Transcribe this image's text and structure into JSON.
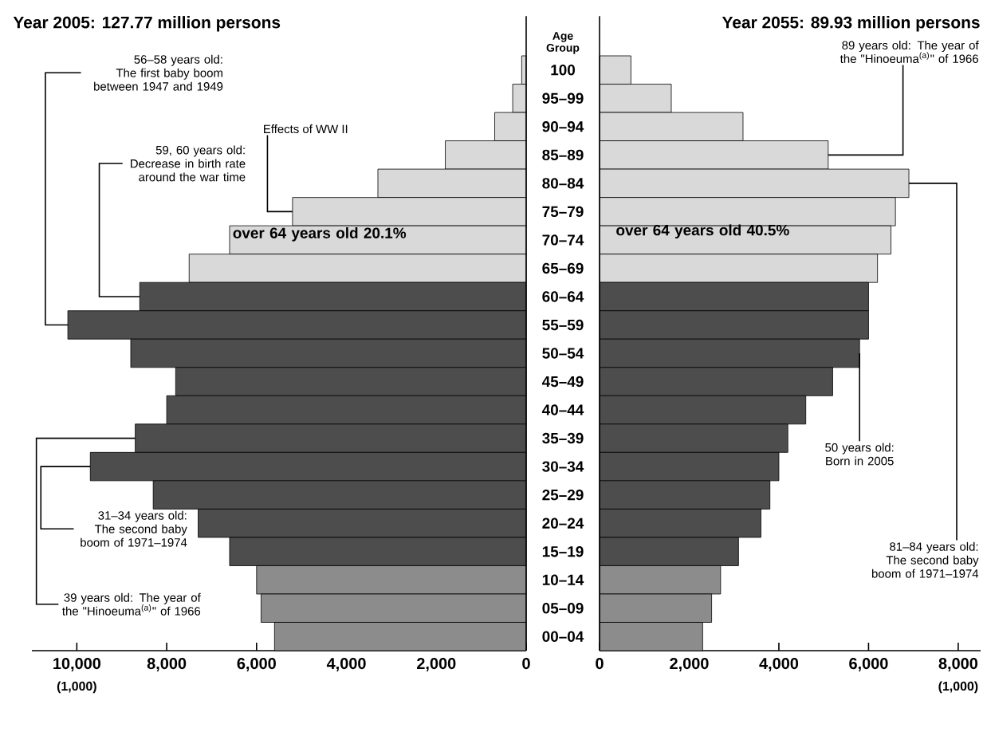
{
  "chart_data": [
    {
      "type": "bar",
      "orientation": "horizontal",
      "title": "Year 2005: 127.77 million persons",
      "xlabel": "(1,000)",
      "ylabel": "Age Group",
      "categories": [
        "100",
        "95–99",
        "90–94",
        "85–89",
        "80–84",
        "75–79",
        "70–74",
        "65–69",
        "60–64",
        "55–59",
        "50–54",
        "45–49",
        "40–44",
        "35–39",
        "30–34",
        "25–29",
        "20–24",
        "15–19",
        "10–14",
        "05–09",
        "00–04"
      ],
      "values": [
        100,
        300,
        700,
        1800,
        3300,
        5200,
        6600,
        7500,
        8600,
        10200,
        8800,
        7800,
        8000,
        8700,
        9700,
        8300,
        7300,
        6600,
        6000,
        5900,
        5600
      ],
      "colors": [
        "#d9d9d9",
        "#d9d9d9",
        "#d9d9d9",
        "#d9d9d9",
        "#d9d9d9",
        "#d9d9d9",
        "#d9d9d9",
        "#d9d9d9",
        "#4d4d4d",
        "#4d4d4d",
        "#4d4d4d",
        "#4d4d4d",
        "#4d4d4d",
        "#4d4d4d",
        "#4d4d4d",
        "#4d4d4d",
        "#4d4d4d",
        "#4d4d4d",
        "#8c8c8c",
        "#8c8c8c",
        "#8c8c8c"
      ],
      "xlim": [
        11000,
        0
      ],
      "xticks": [
        0,
        {
          "value": 2000,
          "label": "2,000"
        },
        {
          "value": 4000,
          "label": "4,000"
        },
        {
          "value": 6000,
          "label": "6,000"
        },
        {
          "value": 8000,
          "label": "8,000"
        },
        {
          "value": 10000,
          "label": "10,000"
        }
      ],
      "annotations": [
        {
          "text": "56–58 years old: The first baby boom between 1947 and 1949",
          "x": 10200,
          "y": "55–59"
        },
        {
          "text": "59, 60 years old: Decrease in birth rate around the war time",
          "x": 8600,
          "y": "60–64"
        },
        {
          "text": "Effects of WW II",
          "x": 5200,
          "y": "75–79"
        },
        {
          "text": "31–34 years old: The second baby boom of 1971–1974",
          "x": 9700,
          "y": "30–34"
        },
        {
          "text": "39 years old: The year of the \"Hinoeuma$^{(a)}$\" of 1966",
          "x": 8700,
          "y": "35–39"
        },
        "over 64 years old 20.1%"
      ]
    },
    {
      "type": "bar",
      "orientation": "horizontal",
      "title": "Year 2055: 89.93 million persons",
      "xlabel": "(1,000)",
      "tick_labels": "x",
      "categories": [
        "100",
        "95–99",
        "90–94",
        "85–89",
        "80–84",
        "75–79",
        "70–74",
        "65–69",
        "60–64",
        "55–59",
        "50–54",
        "45–49",
        "40–44",
        "35–39",
        "30–34",
        "25–29",
        "20–24",
        "15–19",
        "10–14",
        "05–09",
        "00–04"
      ],
      "values": [
        700,
        1600,
        3200,
        5100,
        6900,
        6600,
        6500,
        6200,
        6000,
        6000,
        5800,
        5200,
        4600,
        4200,
        4000,
        3800,
        3600,
        3100,
        2700,
        2500,
        2300
      ],
      "colors": [
        "#d9d9d9",
        "#d9d9d9",
        "#d9d9d9",
        "#d9d9d9",
        "#d9d9d9",
        "#d9d9d9",
        "#d9d9d9",
        "#d9d9d9",
        "#4d4d4d",
        "#4d4d4d",
        "#4d4d4d",
        "#4d4d4d",
        "#4d4d4d",
        "#4d4d4d",
        "#4d4d4d",
        "#4d4d4d",
        "#4d4d4d",
        "#4d4d4d",
        "#8c8c8c",
        "#8c8c8c",
        "#8c8c8c"
      ],
      "xlim": [
        0,
        8500
      ],
      "xticks": [
        0,
        {
          "value": 2000,
          "label": "2,000"
        },
        {
          "value": 4000,
          "label": "4,000"
        },
        {
          "value": 6000,
          "label": "6,000"
        },
        {
          "value": 8000,
          "label": "8,000"
        }
      ],
      "annotations": [
        {
          "text": "89 years old: The year of the \"Hinoeuma$^{(a)}$\" of 1966",
          "x": 5100,
          "y": "85–89"
        },
        {
          "text": "50 years old: Born in 2005",
          "x": 5800,
          "y": "50–54"
        },
        {
          "text": "81–84 years old: The second baby boom of 1971–1974",
          "x": 6900,
          "y": "80–84"
        },
        "over 64 years old 40.5%"
      ]
    }
  ]
}
